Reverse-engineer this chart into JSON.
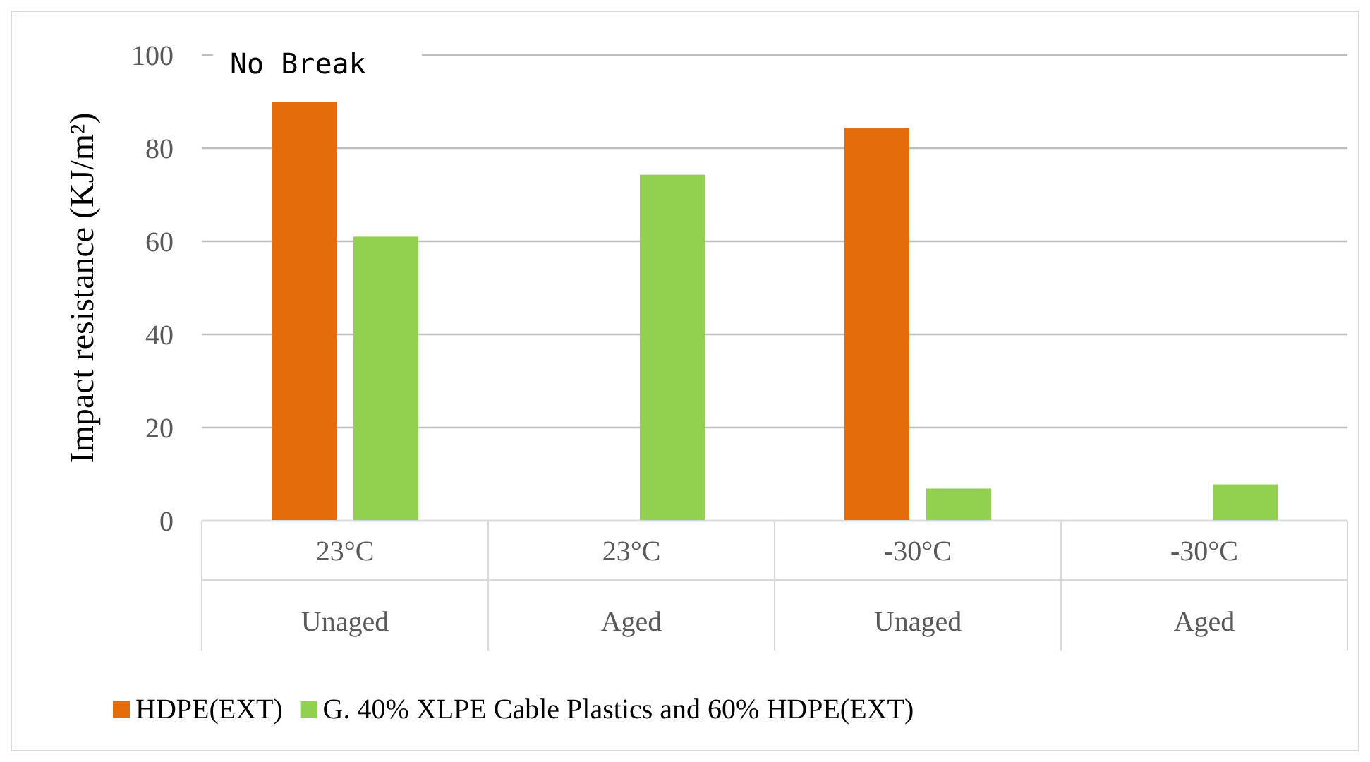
{
  "chart_data": {
    "type": "bar",
    "ylabel": "Impact resistance (KJ/m²)",
    "categories": [
      "23°C\nUnaged",
      "23°C\nAged",
      "-30°C\nUnaged",
      "-30°C\nAged"
    ],
    "series": [
      {
        "name": "HDPE(EXT)",
        "color": "#e46c0a",
        "values": [
          90,
          null,
          84.4,
          null
        ]
      },
      {
        "name": "G. 40% XLPE Cable Plastics and 60% HDPE(EXT)",
        "color": "#92d050",
        "values": [
          61,
          74.3,
          6.9,
          7.8
        ]
      }
    ],
    "ylim": [
      0,
      100
    ],
    "yticks": [
      0,
      20,
      40,
      60,
      80,
      100
    ],
    "grid": "y",
    "legend": "bottom",
    "annotations": [
      "No Break"
    ]
  }
}
